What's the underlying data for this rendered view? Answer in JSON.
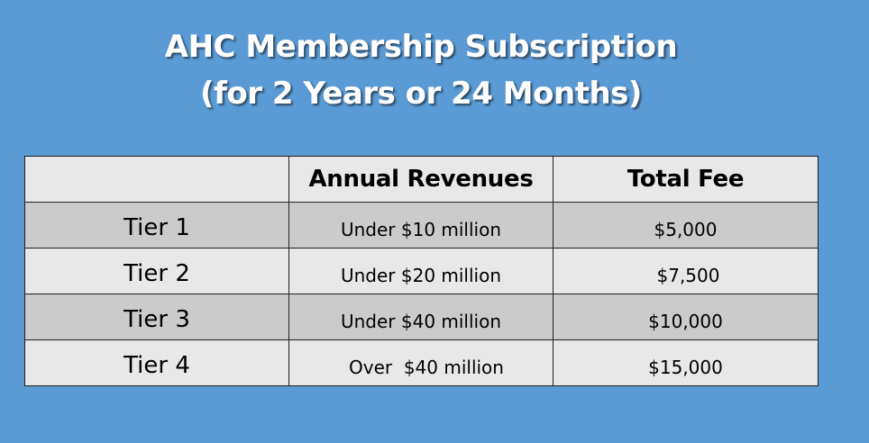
{
  "title": {
    "line1": "AHC Membership Subscription",
    "line2": "(for 2 Years or 24 Months)"
  },
  "table": {
    "headers": [
      "",
      "Annual Revenues",
      "Total Fee"
    ],
    "rows": [
      {
        "tier": "Tier 1",
        "revenue": "Under $10 million",
        "fee": "$5,000"
      },
      {
        "tier": "Tier 2",
        "revenue": "Under $20 million",
        "fee": "$7,500"
      },
      {
        "tier": "Tier 3",
        "revenue": "Under $40 million",
        "fee": "$10,000"
      },
      {
        "tier": "Tier 4",
        "revenue": "Over  $40 million",
        "fee": "$15,000"
      }
    ]
  },
  "colors": {
    "background": "#5b9bd5",
    "title_text": "#ffffff",
    "row_dark": "#cbcbcb",
    "row_light": "#e8e8e8",
    "border": "#1f1f1f"
  }
}
